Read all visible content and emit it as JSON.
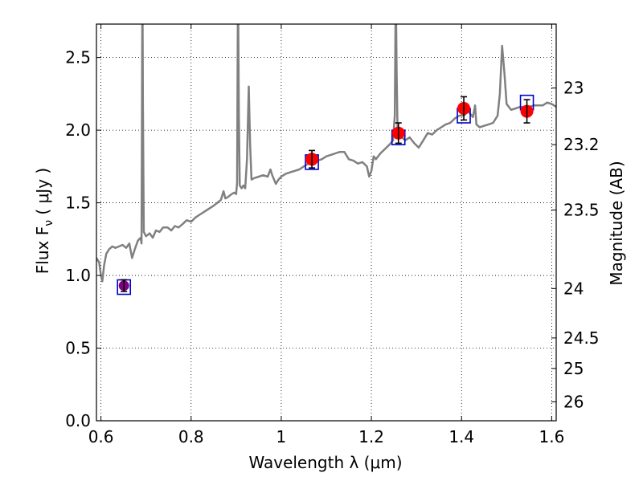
{
  "chart_data": {
    "type": "line",
    "xlabel": "Wavelength  λ (μm)",
    "ylabel_left": "Flux  F",
    "ylabel_left_sub": "ν",
    "ylabel_left_unit": " ( μJy )",
    "ylabel_right": "Magnitude (AB)",
    "xlim": [
      0.59,
      1.61
    ],
    "ylim": [
      0.0,
      2.73
    ],
    "grid": true,
    "x_ticks": [
      0.6,
      0.8,
      1.0,
      1.2,
      1.4,
      1.6
    ],
    "x_tick_labels": [
      "0.6",
      "0.8",
      "1",
      "1.2",
      "1.4",
      "1.6"
    ],
    "y_ticks": [
      0.0,
      0.5,
      1.0,
      1.5,
      2.0,
      2.5
    ],
    "y_tick_labels": [
      "0.0",
      "0.5",
      "1.0",
      "1.5",
      "2.0",
      "2.5"
    ],
    "right_ticks": [
      {
        "label": "23",
        "flux": 2.29
      },
      {
        "label": "23.2",
        "flux": 1.9
      },
      {
        "label": "23.5",
        "flux": 1.45
      },
      {
        "label": "24",
        "flux": 0.91
      },
      {
        "label": "24.5",
        "flux": 0.57
      },
      {
        "label": "25",
        "flux": 0.36
      },
      {
        "label": "26",
        "flux": 0.13
      }
    ],
    "series": [
      {
        "kind": "spectrum",
        "color": "#808080",
        "points": [
          [
            0.59,
            1.12
          ],
          [
            0.596,
            1.09
          ],
          [
            0.6,
            1.0
          ],
          [
            0.603,
            0.96
          ],
          [
            0.607,
            1.07
          ],
          [
            0.612,
            1.15
          ],
          [
            0.618,
            1.18
          ],
          [
            0.625,
            1.2
          ],
          [
            0.632,
            1.19
          ],
          [
            0.64,
            1.2
          ],
          [
            0.648,
            1.21
          ],
          [
            0.656,
            1.19
          ],
          [
            0.663,
            1.22
          ],
          [
            0.669,
            1.12
          ],
          [
            0.675,
            1.18
          ],
          [
            0.682,
            1.24
          ],
          [
            0.688,
            1.26
          ],
          [
            0.69,
            1.22
          ],
          [
            0.692,
            3.1
          ],
          [
            0.693,
            2.2
          ],
          [
            0.695,
            1.3
          ],
          [
            0.7,
            1.27
          ],
          [
            0.708,
            1.29
          ],
          [
            0.715,
            1.26
          ],
          [
            0.722,
            1.31
          ],
          [
            0.73,
            1.3
          ],
          [
            0.738,
            1.33
          ],
          [
            0.748,
            1.33
          ],
          [
            0.756,
            1.31
          ],
          [
            0.764,
            1.34
          ],
          [
            0.772,
            1.33
          ],
          [
            0.78,
            1.35
          ],
          [
            0.79,
            1.38
          ],
          [
            0.8,
            1.37
          ],
          [
            0.81,
            1.4
          ],
          [
            0.82,
            1.42
          ],
          [
            0.83,
            1.44
          ],
          [
            0.84,
            1.46
          ],
          [
            0.85,
            1.48
          ],
          [
            0.858,
            1.5
          ],
          [
            0.866,
            1.52
          ],
          [
            0.872,
            1.58
          ],
          [
            0.876,
            1.53
          ],
          [
            0.882,
            1.54
          ],
          [
            0.89,
            1.56
          ],
          [
            0.896,
            1.57
          ],
          [
            0.9,
            1.56
          ],
          [
            0.902,
            1.64
          ],
          [
            0.904,
            3.05
          ],
          [
            0.906,
            2.1
          ],
          [
            0.908,
            1.62
          ],
          [
            0.912,
            1.6
          ],
          [
            0.916,
            1.62
          ],
          [
            0.92,
            1.6
          ],
          [
            0.924,
            1.8
          ],
          [
            0.928,
            2.3
          ],
          [
            0.931,
            1.9
          ],
          [
            0.934,
            1.66
          ],
          [
            0.94,
            1.67
          ],
          [
            0.95,
            1.68
          ],
          [
            0.96,
            1.69
          ],
          [
            0.97,
            1.68
          ],
          [
            0.976,
            1.73
          ],
          [
            0.98,
            1.69
          ],
          [
            0.988,
            1.63
          ],
          [
            0.994,
            1.66
          ],
          [
            1.0,
            1.68
          ],
          [
            1.01,
            1.7
          ],
          [
            1.02,
            1.71
          ],
          [
            1.03,
            1.72
          ],
          [
            1.04,
            1.73
          ],
          [
            1.05,
            1.75
          ],
          [
            1.06,
            1.77
          ],
          [
            1.07,
            1.78
          ],
          [
            1.08,
            1.79
          ],
          [
            1.09,
            1.8
          ],
          [
            1.1,
            1.82
          ],
          [
            1.11,
            1.83
          ],
          [
            1.12,
            1.84
          ],
          [
            1.13,
            1.85
          ],
          [
            1.14,
            1.85
          ],
          [
            1.15,
            1.8
          ],
          [
            1.16,
            1.79
          ],
          [
            1.17,
            1.77
          ],
          [
            1.18,
            1.78
          ],
          [
            1.19,
            1.75
          ],
          [
            1.195,
            1.68
          ],
          [
            1.2,
            1.72
          ],
          [
            1.205,
            1.82
          ],
          [
            1.21,
            1.8
          ],
          [
            1.22,
            1.84
          ],
          [
            1.23,
            1.87
          ],
          [
            1.24,
            1.9
          ],
          [
            1.248,
            1.93
          ],
          [
            1.252,
            2.1
          ],
          [
            1.254,
            3.0
          ],
          [
            1.256,
            2.4
          ],
          [
            1.258,
            2.0
          ],
          [
            1.265,
            1.96
          ],
          [
            1.275,
            1.93
          ],
          [
            1.285,
            1.95
          ],
          [
            1.295,
            1.91
          ],
          [
            1.305,
            1.88
          ],
          [
            1.315,
            1.93
          ],
          [
            1.325,
            1.98
          ],
          [
            1.335,
            1.97
          ],
          [
            1.345,
            2.0
          ],
          [
            1.355,
            2.02
          ],
          [
            1.365,
            2.04
          ],
          [
            1.375,
            2.05
          ],
          [
            1.385,
            2.08
          ],
          [
            1.395,
            2.1
          ],
          [
            1.405,
            2.1
          ],
          [
            1.415,
            2.13
          ],
          [
            1.425,
            2.09
          ],
          [
            1.43,
            2.17
          ],
          [
            1.433,
            2.04
          ],
          [
            1.44,
            2.02
          ],
          [
            1.45,
            2.03
          ],
          [
            1.46,
            2.04
          ],
          [
            1.47,
            2.05
          ],
          [
            1.48,
            2.1
          ],
          [
            1.485,
            2.25
          ],
          [
            1.49,
            2.58
          ],
          [
            1.495,
            2.4
          ],
          [
            1.5,
            2.18
          ],
          [
            1.51,
            2.14
          ],
          [
            1.52,
            2.15
          ],
          [
            1.53,
            2.16
          ],
          [
            1.54,
            2.16
          ],
          [
            1.55,
            2.16
          ],
          [
            1.56,
            2.17
          ],
          [
            1.57,
            2.17
          ],
          [
            1.58,
            2.17
          ],
          [
            1.59,
            2.19
          ],
          [
            1.6,
            2.18
          ],
          [
            1.61,
            2.16
          ]
        ]
      },
      {
        "kind": "model-boxes",
        "color": "#0000cc",
        "points": [
          [
            0.651,
            0.92
          ],
          [
            1.068,
            1.78
          ],
          [
            1.26,
            1.95
          ],
          [
            1.405,
            2.1
          ],
          [
            1.545,
            2.19
          ]
        ]
      },
      {
        "kind": "observed-points",
        "color": "#ff0000",
        "first_point_color": "#800080",
        "points": [
          {
            "x": 0.651,
            "y": 0.93,
            "err": 0.04
          },
          {
            "x": 1.068,
            "y": 1.8,
            "err": 0.06
          },
          {
            "x": 1.26,
            "y": 1.98,
            "err": 0.07
          },
          {
            "x": 1.405,
            "y": 2.15,
            "err": 0.08
          },
          {
            "x": 1.545,
            "y": 2.13,
            "err": 0.08
          }
        ]
      }
    ]
  }
}
